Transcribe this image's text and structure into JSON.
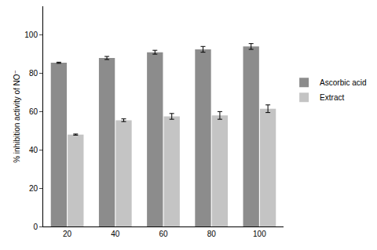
{
  "chart_data": {
    "type": "bar",
    "y_label": "% inhibition activity of NO⁻",
    "categories": [
      "20",
      "40",
      "60",
      "80",
      "100"
    ],
    "series": [
      {
        "name": "Ascorbic acid",
        "color": "#8c8c8c",
        "values": [
          85.5,
          88,
          91,
          92.5,
          94
        ],
        "errors": [
          0.3,
          0.8,
          1,
          1.5,
          1.5
        ]
      },
      {
        "name": "Extract",
        "color": "#c4c4c4",
        "values": [
          48,
          55.5,
          57.5,
          58,
          61.5
        ],
        "errors": [
          0.3,
          0.7,
          1.5,
          2,
          2
        ]
      }
    ],
    "ylim": [
      0,
      115
    ],
    "yticks": [
      0,
      20,
      40,
      60,
      80,
      100
    ],
    "grid": false,
    "legend": "right"
  }
}
